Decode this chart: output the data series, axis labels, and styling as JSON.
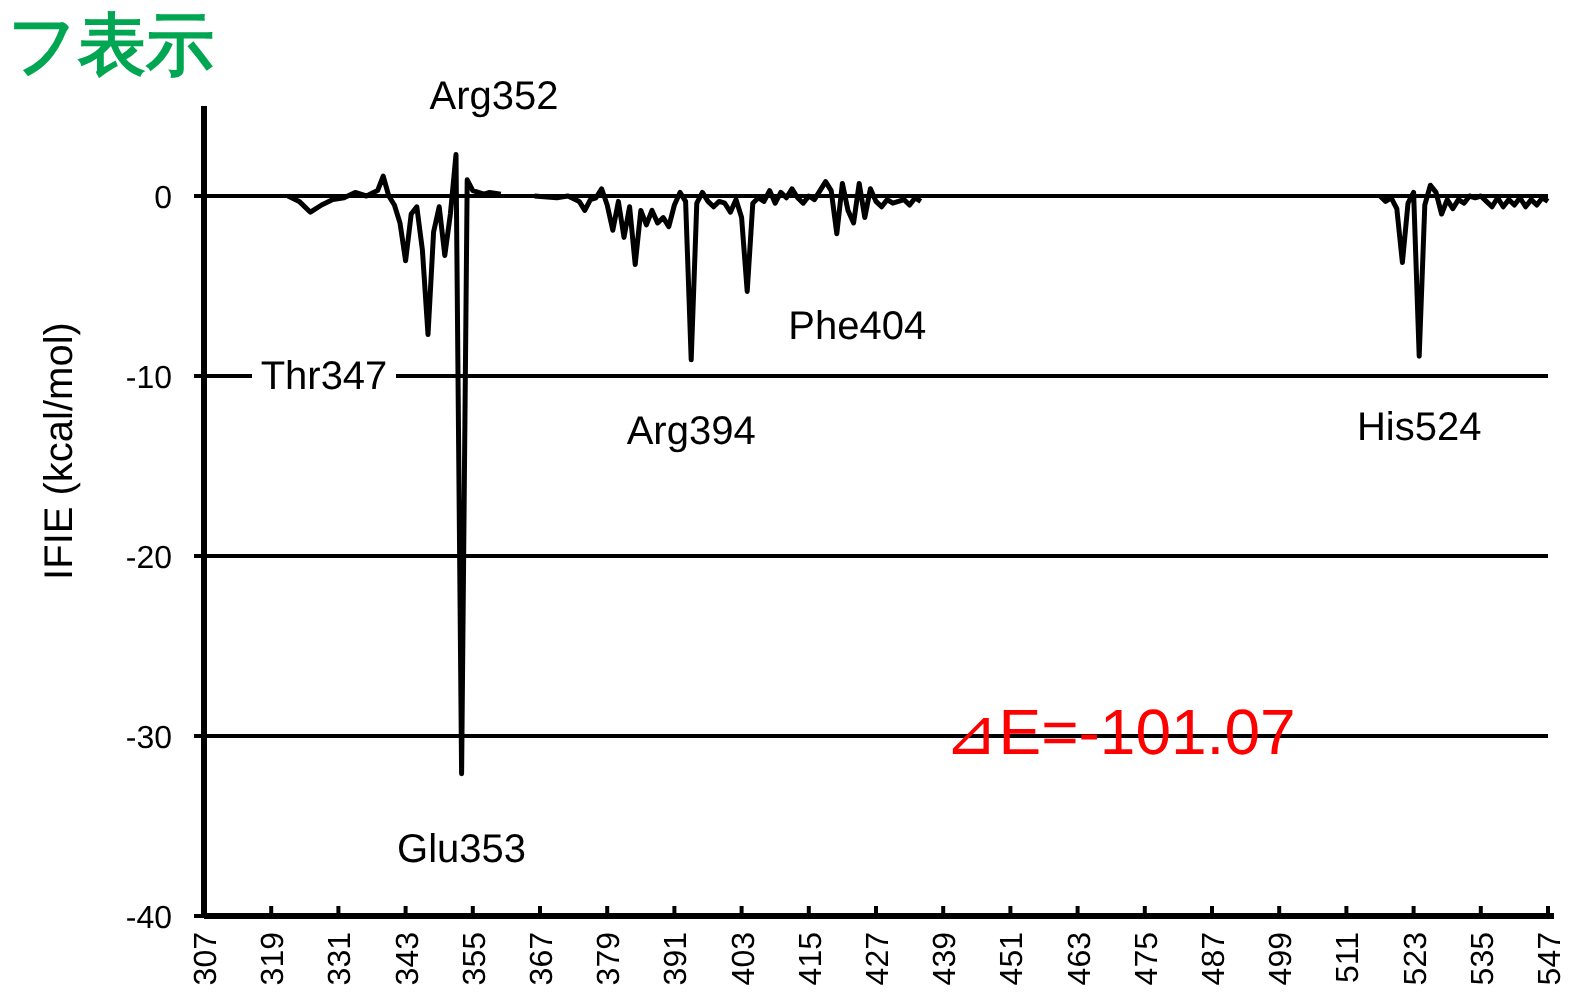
{
  "chart_data": {
    "type": "line",
    "title": "フ表示",
    "ylabel": "IFIE (kcal/mol)",
    "xlim": [
      307,
      547
    ],
    "ylim": [
      -40,
      5
    ],
    "xticks": [
      307,
      319,
      331,
      343,
      355,
      367,
      379,
      391,
      403,
      415,
      427,
      439,
      451,
      463,
      475,
      487,
      499,
      511,
      523,
      535,
      547
    ],
    "yticks": [
      0,
      -10,
      -20,
      -30,
      -40
    ],
    "grid": "y",
    "series": [
      {
        "color": "#000000",
        "x": [
          322,
          324,
          326,
          328,
          330,
          332,
          334,
          336,
          338,
          339,
          340,
          341,
          342,
          343,
          344,
          345,
          346,
          347,
          348,
          349,
          350,
          351,
          352,
          353,
          354,
          355,
          356,
          357,
          358,
          360,
          null,
          366,
          370,
          372,
          374,
          375,
          376,
          377,
          378,
          379,
          380,
          381,
          382,
          383,
          384,
          385,
          386,
          387,
          388,
          389,
          390,
          391,
          392,
          393,
          394,
          395,
          396,
          397,
          398,
          399,
          400,
          401,
          402,
          403,
          404,
          405,
          406,
          407,
          408,
          409,
          410,
          411,
          412,
          413,
          414,
          415,
          416,
          418,
          419,
          420,
          421,
          422,
          423,
          424,
          425,
          426,
          427,
          428,
          429,
          430,
          432,
          433,
          434,
          435,
          null,
          517,
          518,
          519,
          520,
          521,
          522,
          523,
          524,
          525,
          526,
          527,
          528,
          529,
          530,
          531,
          532,
          533,
          534,
          535,
          536,
          537,
          538,
          539,
          540,
          541,
          542,
          543,
          544,
          545,
          546,
          547
        ],
        "values": [
          0,
          -0.3,
          -0.9,
          -0.5,
          -0.2,
          -0.1,
          0.2,
          0,
          0.3,
          1.1,
          0,
          -0.5,
          -1.5,
          -3.6,
          -1.0,
          -0.6,
          -3,
          -7.7,
          -2,
          -0.6,
          -3.3,
          -1,
          2.3,
          -32.1,
          0.9,
          0.3,
          0.2,
          0.1,
          0.2,
          0.1,
          null,
          0,
          -0.1,
          0,
          -0.3,
          -0.8,
          -0.2,
          -0.1,
          0.4,
          -0.5,
          -1.9,
          -0.3,
          -2.3,
          -0.6,
          -3.8,
          -0.8,
          -1.6,
          -0.8,
          -1.5,
          -1.2,
          -1.7,
          -0.5,
          0.2,
          -0.3,
          -9.1,
          -0.4,
          0.2,
          -0.3,
          -0.6,
          -0.3,
          -0.4,
          -0.9,
          -0.2,
          -1.2,
          -5.3,
          -0.4,
          -0.1,
          -0.3,
          0.3,
          -0.4,
          0.2,
          -0.1,
          0.4,
          -0.1,
          -0.4,
          0,
          -0.2,
          0.8,
          0.3,
          -2.1,
          0.7,
          -0.8,
          -1.5,
          0.7,
          -1.2,
          0.4,
          -0.3,
          -0.6,
          -0.2,
          -0.4,
          -0.2,
          -0.5,
          -0.1,
          -0.3,
          null,
          0,
          -0.3,
          -0.1,
          -0.7,
          -3.7,
          -0.4,
          0.2,
          -8.9,
          -0.5,
          0.6,
          0.2,
          -1.0,
          -0.2,
          -0.7,
          -0.2,
          -0.4,
          0,
          -0.1,
          0,
          -0.3,
          -0.6,
          -0.1,
          -0.6,
          -0.2,
          -0.5,
          -0.1,
          -0.6,
          -0.2,
          -0.5,
          -0.1,
          -0.3
        ]
      }
    ],
    "annotations": [
      {
        "text": "Arg352",
        "x": 352,
        "y": 2.3
      },
      {
        "text": "Glu353",
        "x": 353,
        "y": -32.1
      },
      {
        "text": "Thr347",
        "x": 347,
        "y": -7.7
      },
      {
        "text": "Arg394",
        "x": 394,
        "y": -9.1
      },
      {
        "text": "Phe404",
        "x": 404,
        "y": -5.3
      },
      {
        "text": "His524",
        "x": 524,
        "y": -8.9
      },
      "⊿E=-101.07"
    ]
  }
}
